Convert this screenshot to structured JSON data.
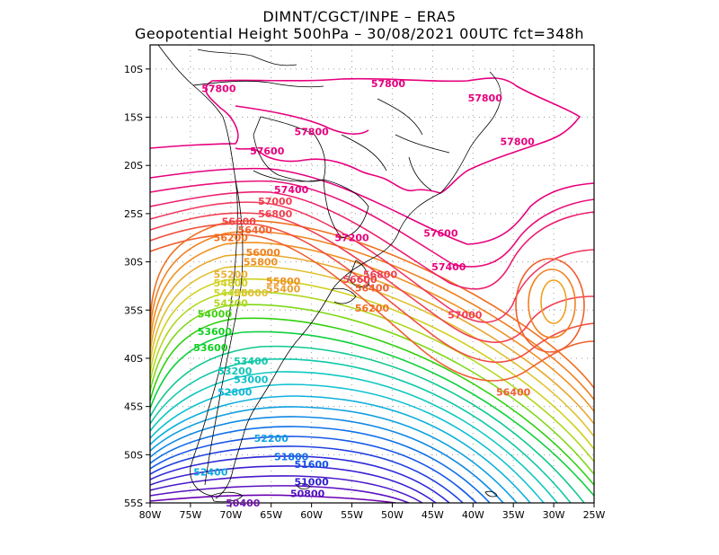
{
  "header": {
    "line1": "DIMNT/CGCT/INPE –  ERA5",
    "line2": "Geopotential Height 500hPa –  30/08/2021 00UTC fct=348h"
  },
  "axes": {
    "lon_ticks": [
      "80W",
      "75W",
      "70W",
      "65W",
      "60W",
      "55W",
      "50W",
      "45W",
      "40W",
      "35W",
      "30W",
      "25W"
    ],
    "lat_ticks": [
      "10S",
      "15S",
      "20S",
      "25S",
      "30S",
      "35S",
      "40S",
      "45S",
      "50S",
      "55S"
    ],
    "lon_values": [
      -80,
      -75,
      -70,
      -65,
      -60,
      -55,
      -50,
      -45,
      -40,
      -35,
      -30,
      -25
    ],
    "lat_values": [
      -10,
      -15,
      -20,
      -25,
      -30,
      -35,
      -40,
      -45,
      -50,
      -55
    ],
    "lon_range": [
      -80,
      -25
    ],
    "lat_range": [
      -55,
      -7.5
    ],
    "grid": "dotted"
  },
  "contour_labels": [
    {
      "text": "57800",
      "lon": -71.5,
      "lat": -12.0,
      "color": "#e6007e"
    },
    {
      "text": "57800",
      "lon": -50.5,
      "lat": -11.5,
      "color": "#e6007e"
    },
    {
      "text": "57800",
      "lon": -38.5,
      "lat": -13.0,
      "color": "#e6007e"
    },
    {
      "text": "57800",
      "lon": -60.0,
      "lat": -16.5,
      "color": "#e6007e"
    },
    {
      "text": "57800",
      "lon": -34.5,
      "lat": -17.5,
      "color": "#e6007e"
    },
    {
      "text": "57600",
      "lon": -65.5,
      "lat": -18.5,
      "color": "#e6007e"
    },
    {
      "text": "57400",
      "lon": -62.5,
      "lat": -22.5,
      "color": "#e6007e"
    },
    {
      "text": "57000",
      "lon": -64.5,
      "lat": -23.7,
      "color": "#f04050"
    },
    {
      "text": "56800",
      "lon": -64.5,
      "lat": -25.0,
      "color": "#f04050"
    },
    {
      "text": "56600",
      "lon": -69.0,
      "lat": -25.8,
      "color": "#f04050"
    },
    {
      "text": "56400",
      "lon": -67.0,
      "lat": -26.7,
      "color": "#f06030"
    },
    {
      "text": "57200",
      "lon": -55.0,
      "lat": -27.5,
      "color": "#e6007e"
    },
    {
      "text": "57600",
      "lon": -44.0,
      "lat": -27.0,
      "color": "#e6007e"
    },
    {
      "text": "56200",
      "lon": -70.0,
      "lat": -27.5,
      "color": "#f07020"
    },
    {
      "text": "56000",
      "lon": -66.0,
      "lat": -29.0,
      "color": "#f08020"
    },
    {
      "text": "55800",
      "lon": -66.3,
      "lat": -30.0,
      "color": "#f09020"
    },
    {
      "text": "57400",
      "lon": -43.0,
      "lat": -30.5,
      "color": "#e6007e"
    },
    {
      "text": "55200",
      "lon": -70.0,
      "lat": -31.3,
      "color": "#e8b030"
    },
    {
      "text": "55800",
      "lon": -63.5,
      "lat": -32.0,
      "color": "#f09020"
    },
    {
      "text": "54800",
      "lon": -70.0,
      "lat": -32.2,
      "color": "#d0d020"
    },
    {
      "text": "55400",
      "lon": -63.5,
      "lat": -32.8,
      "color": "#e8a030"
    },
    {
      "text": "54400",
      "lon": -70.0,
      "lat": -33.2,
      "color": "#c8d828"
    },
    {
      "text": "55000",
      "lon": -67.5,
      "lat": -33.2,
      "color": "#e0c030"
    },
    {
      "text": "56600",
      "lon": -54.0,
      "lat": -31.8,
      "color": "#f04050"
    },
    {
      "text": "56800",
      "lon": -51.5,
      "lat": -31.3,
      "color": "#f04050"
    },
    {
      "text": "56400",
      "lon": -52.5,
      "lat": -32.7,
      "color": "#f06030"
    },
    {
      "text": "54200",
      "lon": -70.0,
      "lat": -34.3,
      "color": "#b0d820"
    },
    {
      "text": "56200",
      "lon": -52.5,
      "lat": -34.8,
      "color": "#f07020"
    },
    {
      "text": "57000",
      "lon": -41.0,
      "lat": -35.5,
      "color": "#f04050"
    },
    {
      "text": "54000",
      "lon": -72.0,
      "lat": -35.4,
      "color": "#40d010"
    },
    {
      "text": "53600",
      "lon": -72.0,
      "lat": -37.2,
      "color": "#10d020"
    },
    {
      "text": "53600",
      "lon": -72.5,
      "lat": -38.9,
      "color": "#10d020"
    },
    {
      "text": "53400",
      "lon": -67.5,
      "lat": -40.3,
      "color": "#10c8a8"
    },
    {
      "text": "53200",
      "lon": -69.5,
      "lat": -41.3,
      "color": "#10c8b8"
    },
    {
      "text": "53000",
      "lon": -67.5,
      "lat": -42.2,
      "color": "#10c0c8"
    },
    {
      "text": "52800",
      "lon": -69.5,
      "lat": -43.5,
      "color": "#10b8d8"
    },
    {
      "text": "56400",
      "lon": -35.0,
      "lat": -43.5,
      "color": "#f06030"
    },
    {
      "text": "52200",
      "lon": -65.0,
      "lat": -48.3,
      "color": "#10a0e0"
    },
    {
      "text": "51800",
      "lon": -62.5,
      "lat": -50.2,
      "color": "#1070e8"
    },
    {
      "text": "51600",
      "lon": -60.0,
      "lat": -51.0,
      "color": "#1050e8"
    },
    {
      "text": "52400",
      "lon": -72.5,
      "lat": -51.8,
      "color": "#10a8e0"
    },
    {
      "text": "51000",
      "lon": -60.0,
      "lat": -52.8,
      "color": "#3020d0"
    },
    {
      "text": "50800",
      "lon": -60.5,
      "lat": -54.0,
      "color": "#5010c0"
    },
    {
      "text": "50400",
      "lon": -68.5,
      "lat": -55.0,
      "color": "#7010b0"
    }
  ],
  "colors": {
    "coast": "#000000",
    "grid": "#9a9a9a",
    "high": "#e6007e",
    "low": "#5000b0"
  }
}
